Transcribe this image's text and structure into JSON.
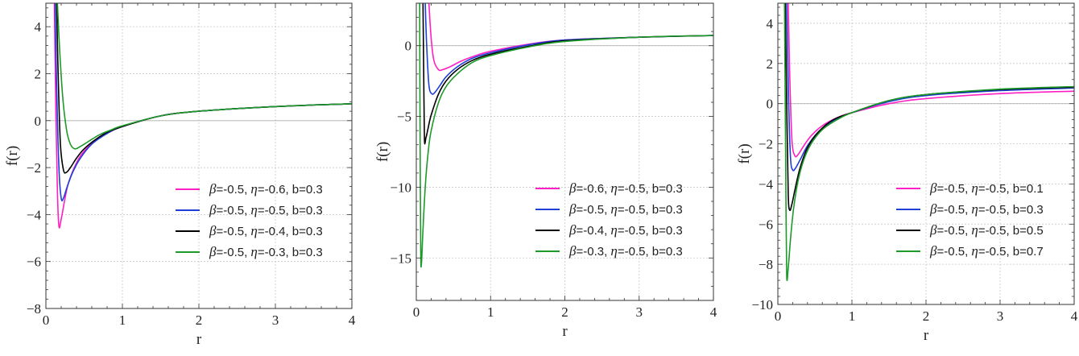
{
  "chart_data": [
    {
      "type": "line",
      "xlabel": "r",
      "ylabel": "f(r)",
      "xlim": [
        0,
        4
      ],
      "ylim": [
        -8,
        5
      ],
      "xticks": [
        0,
        1,
        2,
        3,
        4
      ],
      "yticks": [
        -8,
        -6,
        -4,
        -2,
        0,
        2,
        4
      ],
      "grid": true,
      "legend_position": "lower-right",
      "series": [
        {
          "name": "β=-0.5, η=-0.6, b=0.3",
          "color": "#ff1fc4",
          "x": [
            0.11,
            0.13,
            0.15,
            0.17,
            0.2,
            0.25,
            0.3,
            0.4,
            0.5,
            0.7,
            1.0,
            1.5,
            2.0,
            3.0,
            4.0
          ],
          "y": [
            5.0,
            0.5,
            -3.0,
            -4.5,
            -4.2,
            -3.3,
            -2.6,
            -1.8,
            -1.3,
            -0.7,
            -0.25,
            0.2,
            0.4,
            0.6,
            0.72
          ]
        },
        {
          "name": "β=-0.5, η=-0.5, b=0.3",
          "color": "#1f3fd6",
          "x": [
            0.12,
            0.14,
            0.17,
            0.2,
            0.23,
            0.28,
            0.35,
            0.45,
            0.6,
            0.8,
            1.0,
            1.5,
            2.0,
            3.0,
            4.0
          ],
          "y": [
            5.0,
            1.5,
            -2.0,
            -3.3,
            -3.3,
            -2.8,
            -2.2,
            -1.6,
            -1.0,
            -0.55,
            -0.25,
            0.2,
            0.4,
            0.6,
            0.72
          ]
        },
        {
          "name": "β=-0.5, η=-0.4, b=0.3",
          "color": "#000000",
          "x": [
            0.14,
            0.16,
            0.19,
            0.23,
            0.27,
            0.32,
            0.4,
            0.5,
            0.65,
            0.8,
            1.0,
            1.5,
            2.0,
            3.0,
            4.0
          ],
          "y": [
            5.0,
            2.0,
            -1.0,
            -2.1,
            -2.2,
            -2.0,
            -1.6,
            -1.2,
            -0.8,
            -0.5,
            -0.25,
            0.2,
            0.4,
            0.6,
            0.72
          ]
        },
        {
          "name": "β=-0.5, η=-0.3, b=0.3",
          "color": "#1d9a2a",
          "x": [
            0.15,
            0.18,
            0.22,
            0.27,
            0.32,
            0.38,
            0.45,
            0.55,
            0.7,
            0.85,
            1.0,
            1.5,
            2.0,
            3.0,
            4.0
          ],
          "y": [
            5.0,
            3.0,
            1.0,
            -0.4,
            -1.0,
            -1.2,
            -1.1,
            -0.9,
            -0.6,
            -0.4,
            -0.22,
            0.2,
            0.4,
            0.6,
            0.72
          ]
        }
      ]
    },
    {
      "type": "line",
      "xlabel": "r",
      "ylabel": "f(r)",
      "xlim": [
        0,
        4
      ],
      "ylim": [
        -18,
        3
      ],
      "xticks": [
        0,
        1,
        2,
        3,
        4
      ],
      "yticks": [
        -15,
        -10,
        -5,
        0
      ],
      "grid": true,
      "legend_position": "lower-right",
      "series": [
        {
          "name": "β=-0.6, η=-0.5, b=0.3",
          "color": "#ff1fc4",
          "x": [
            0.17,
            0.2,
            0.24,
            0.3,
            0.35,
            0.45,
            0.6,
            0.8,
            1.0,
            1.5,
            2.0,
            3.0,
            4.0
          ],
          "y": [
            3.0,
            0.5,
            -1.1,
            -1.7,
            -1.7,
            -1.5,
            -1.1,
            -0.7,
            -0.4,
            0.1,
            0.4,
            0.6,
            0.72
          ]
        },
        {
          "name": "β=-0.5, η=-0.5, b=0.3",
          "color": "#1f3fd6",
          "x": [
            0.12,
            0.14,
            0.17,
            0.21,
            0.25,
            0.32,
            0.4,
            0.55,
            0.75,
            1.0,
            1.5,
            2.0,
            3.0,
            4.0
          ],
          "y": [
            3.0,
            0.0,
            -2.8,
            -3.4,
            -3.3,
            -2.8,
            -2.2,
            -1.5,
            -0.9,
            -0.5,
            0.05,
            0.4,
            0.6,
            0.72
          ]
        },
        {
          "name": "β=-0.4, η=-0.5, b=0.3",
          "color": "#000000",
          "x": [
            0.09,
            0.1,
            0.11,
            0.13,
            0.16,
            0.2,
            0.3,
            0.4,
            0.55,
            0.75,
            1.0,
            1.5,
            2.0,
            3.0,
            4.0
          ],
          "y": [
            3.0,
            -2.0,
            -6.6,
            -6.5,
            -5.8,
            -4.9,
            -3.4,
            -2.5,
            -1.7,
            -1.05,
            -0.6,
            -0.05,
            0.35,
            0.6,
            0.72
          ]
        },
        {
          "name": "β=-0.3, η=-0.5, b=0.3",
          "color": "#1d9a2a",
          "x": [
            0.045,
            0.05,
            0.06,
            0.07,
            0.09,
            0.12,
            0.16,
            0.2,
            0.3,
            0.4,
            0.55,
            0.75,
            1.0,
            1.5,
            2.0,
            3.0,
            4.0
          ],
          "y": [
            3.0,
            -5.0,
            -14.5,
            -15.3,
            -13.0,
            -10.0,
            -7.5,
            -6.0,
            -4.0,
            -2.9,
            -2.0,
            -1.2,
            -0.7,
            -0.1,
            0.3,
            0.6,
            0.72
          ]
        }
      ]
    },
    {
      "type": "line",
      "xlabel": "r",
      "ylabel": "f(r)",
      "xlim": [
        0,
        4
      ],
      "ylim": [
        -10,
        5
      ],
      "xticks": [
        0,
        1,
        2,
        3,
        4
      ],
      "yticks": [
        -10,
        -8,
        -6,
        -4,
        -2,
        0,
        2,
        4
      ],
      "grid": true,
      "legend_position": "lower-right",
      "series": [
        {
          "name": "β=-0.5, η=-0.5, b=0.1",
          "color": "#ff1fc4",
          "x": [
            0.14,
            0.16,
            0.19,
            0.23,
            0.28,
            0.35,
            0.45,
            0.6,
            0.8,
            1.0,
            1.5,
            2.0,
            3.0,
            4.0
          ],
          "y": [
            5.0,
            1.5,
            -1.8,
            -2.6,
            -2.5,
            -2.1,
            -1.6,
            -1.1,
            -0.7,
            -0.45,
            0.0,
            0.25,
            0.5,
            0.62
          ]
        },
        {
          "name": "β=-0.5, η=-0.5, b=0.3",
          "color": "#1f3fd6",
          "x": [
            0.12,
            0.14,
            0.17,
            0.2,
            0.24,
            0.3,
            0.4,
            0.55,
            0.75,
            1.0,
            1.5,
            2.0,
            3.0,
            4.0
          ],
          "y": [
            5.0,
            1.0,
            -2.6,
            -3.3,
            -3.2,
            -2.8,
            -2.1,
            -1.4,
            -0.85,
            -0.45,
            0.1,
            0.4,
            0.65,
            0.78
          ]
        },
        {
          "name": "β=-0.5, η=-0.5, b=0.5",
          "color": "#000000",
          "x": [
            0.1,
            0.12,
            0.14,
            0.16,
            0.19,
            0.23,
            0.3,
            0.4,
            0.55,
            0.75,
            1.0,
            1.5,
            2.0,
            3.0,
            4.0
          ],
          "y": [
            5.0,
            0.0,
            -4.5,
            -5.3,
            -5.0,
            -4.3,
            -3.2,
            -2.2,
            -1.4,
            -0.8,
            -0.45,
            0.15,
            0.45,
            0.7,
            0.82
          ]
        },
        {
          "name": "β=-0.5, η=-0.5, b=0.7",
          "color": "#1d9a2a",
          "x": [
            0.09,
            0.1,
            0.11,
            0.12,
            0.14,
            0.17,
            0.21,
            0.27,
            0.35,
            0.45,
            0.6,
            0.8,
            1.0,
            1.5,
            2.0,
            3.0,
            4.0
          ],
          "y": [
            5.0,
            0.0,
            -5.0,
            -8.6,
            -8.2,
            -6.8,
            -5.3,
            -3.9,
            -2.8,
            -2.0,
            -1.3,
            -0.8,
            -0.45,
            0.15,
            0.45,
            0.72,
            0.85
          ]
        }
      ]
    }
  ]
}
